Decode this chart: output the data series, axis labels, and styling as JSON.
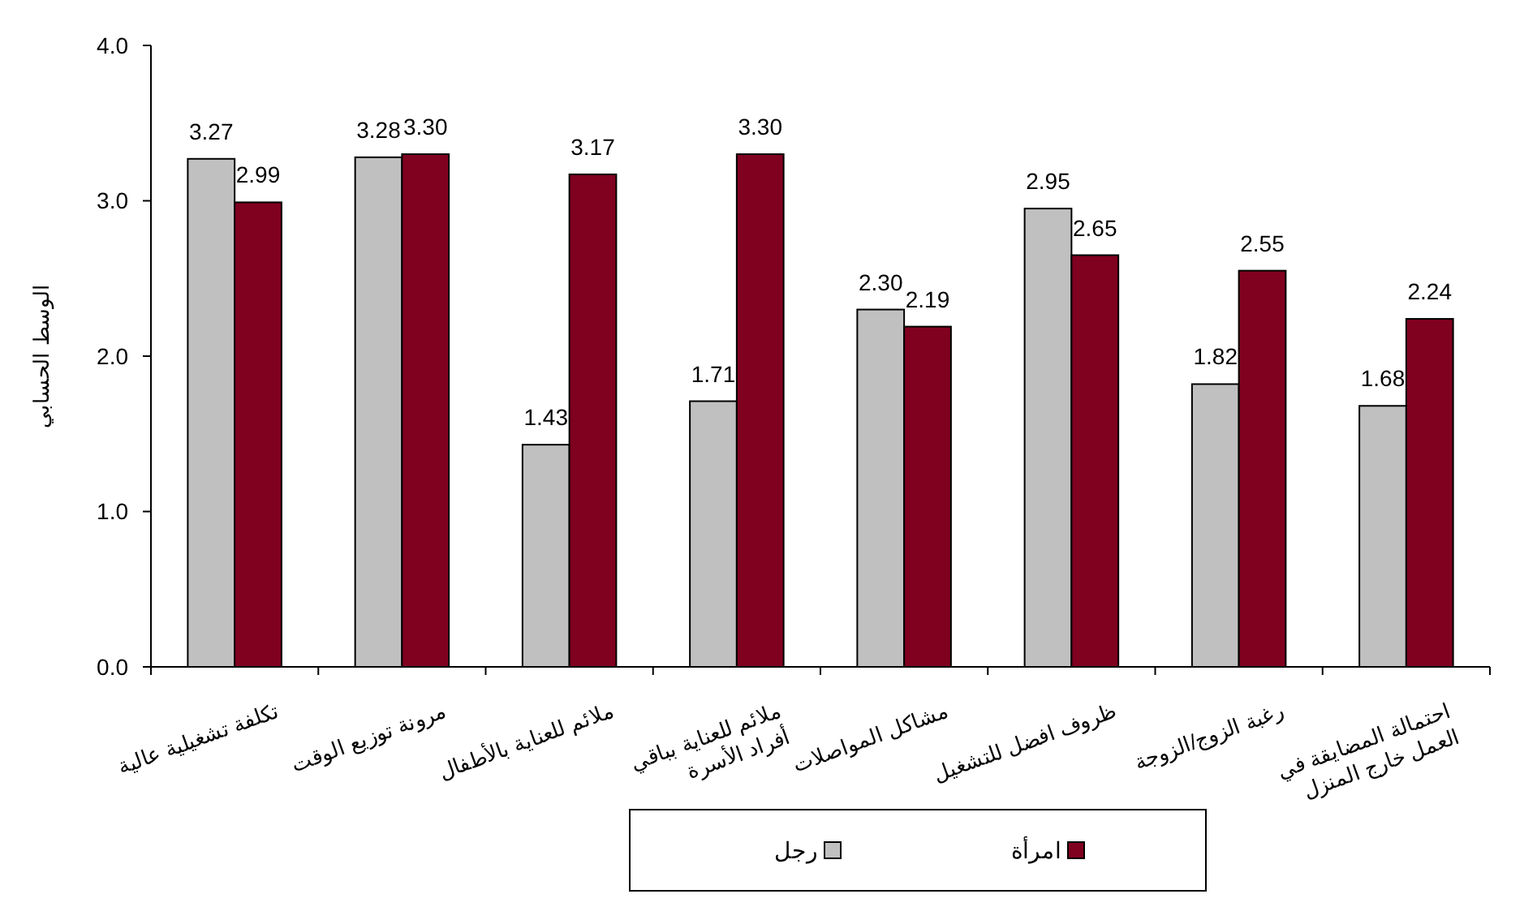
{
  "chart_data": {
    "type": "bar",
    "ylabel": "الوسط الحسابي",
    "categories": [
      "تكلفة تشغيلية عالية",
      "مرونة توزيع الوقت",
      "ملائم للعناية بالأطفال",
      "ملائم للعناية بباقي أفراد الأسرة",
      "مشاكل المواصلات",
      "ظروف افضل للتشغيل",
      "رغبة الزوج/الزوجة",
      "احتمالة المضايقة في العمل خارج المنزل"
    ],
    "series": [
      {
        "name": "رجل",
        "color": "#c0c0c0",
        "values": [
          3.27,
          3.28,
          1.43,
          1.71,
          2.3,
          2.95,
          1.82,
          1.68
        ],
        "value_labels": [
          "3.27",
          "3.28",
          "1.43",
          "1.71",
          "2.30",
          "2.95",
          "1.82",
          "1.68"
        ]
      },
      {
        "name": "امرأة",
        "color": "#800020",
        "values": [
          2.99,
          3.3,
          3.17,
          3.3,
          2.19,
          2.65,
          2.55,
          2.24
        ],
        "value_labels": [
          "2.99",
          "3.30",
          "3.17",
          "3.30",
          "2.19",
          "2.65",
          "2.55",
          "2.24"
        ]
      }
    ],
    "ylim": [
      0,
      4
    ],
    "yticks": [
      {
        "value": 0,
        "label": "0.0"
      },
      {
        "value": 1,
        "label": "1.0"
      },
      {
        "value": 2,
        "label": "2.0"
      },
      {
        "value": 3,
        "label": "3.0"
      },
      {
        "value": 4,
        "label": "4.0"
      }
    ],
    "grid": false,
    "legend": "bottom"
  }
}
